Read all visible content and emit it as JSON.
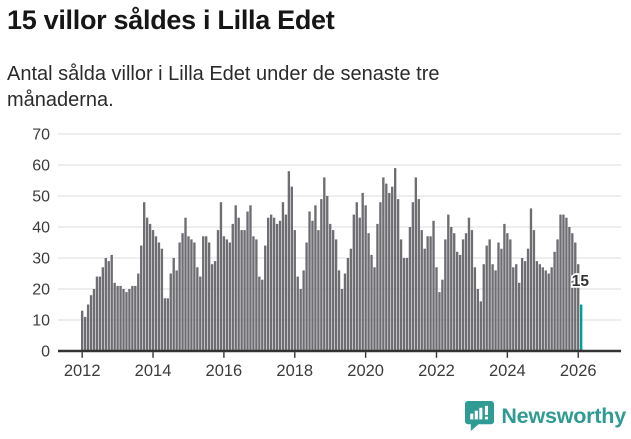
{
  "header": {
    "title": "15 villor såldes i Lilla Edet",
    "subtitle": "Antal sålda villor i Lilla Edet under de senaste tre månaderna.",
    "subtitle_lines": [
      "Antal sålda villor i Lilla Edet under de senaste tre",
      "månaderna."
    ]
  },
  "chart_data": {
    "type": "bar",
    "title": "15 villor såldes i Lilla Edet",
    "subtitle": "Antal sålda villor i Lilla Edet under de senaste tre månaderna.",
    "frequency": "monthly",
    "x_start": "2012-01",
    "x_end": "2026-02",
    "values": [
      13,
      11,
      15,
      18,
      20,
      24,
      24,
      27,
      30,
      29,
      31,
      22,
      21,
      21,
      20,
      19,
      20,
      21,
      21,
      25,
      34,
      48,
      43,
      41,
      39,
      37,
      35,
      33,
      17,
      17,
      25,
      30,
      26,
      35,
      38,
      43,
      37,
      36,
      35,
      27,
      24,
      37,
      37,
      35,
      28,
      29,
      39,
      48,
      37,
      36,
      35,
      41,
      47,
      43,
      39,
      39,
      45,
      47,
      37,
      36,
      24,
      23,
      34,
      43,
      44,
      43,
      41,
      42,
      48,
      44,
      58,
      53,
      39,
      24,
      20,
      26,
      35,
      45,
      42,
      47,
      39,
      49,
      56,
      50,
      41,
      39,
      36,
      26,
      20,
      25,
      30,
      33,
      44,
      48,
      43,
      51,
      47,
      38,
      31,
      27,
      41,
      48,
      56,
      54,
      51,
      53,
      59,
      49,
      36,
      30,
      30,
      40,
      48,
      56,
      49,
      39,
      33,
      37,
      37,
      42,
      27,
      19,
      23,
      36,
      44,
      40,
      38,
      32,
      31,
      36,
      38,
      43,
      39,
      27,
      20,
      16,
      28,
      34,
      36,
      28,
      26,
      35,
      33,
      41,
      38,
      36,
      27,
      28,
      22,
      30,
      29,
      33,
      46,
      39,
      29,
      28,
      27,
      26,
      25,
      27,
      32,
      36,
      44,
      44,
      43,
      40,
      38,
      35,
      28,
      15
    ],
    "last_value": 15,
    "last_label": "15",
    "highlight_last": true,
    "ylim": [
      0,
      70
    ],
    "yticks": [
      0,
      10,
      20,
      30,
      40,
      50,
      60,
      70
    ],
    "xticks": [
      2012,
      2014,
      2016,
      2018,
      2020,
      2022,
      2024,
      2026
    ],
    "grid": "horizontal",
    "legend": "none",
    "bar_color": "#6d6d72",
    "highlight_color": "#00a09a",
    "grid_color": "#dcdcdc",
    "axis_color": "#333333",
    "label_color": "#3c3c3c"
  },
  "footer": {
    "brand": "Newsworthy",
    "brand_color": "#2f9b93"
  }
}
